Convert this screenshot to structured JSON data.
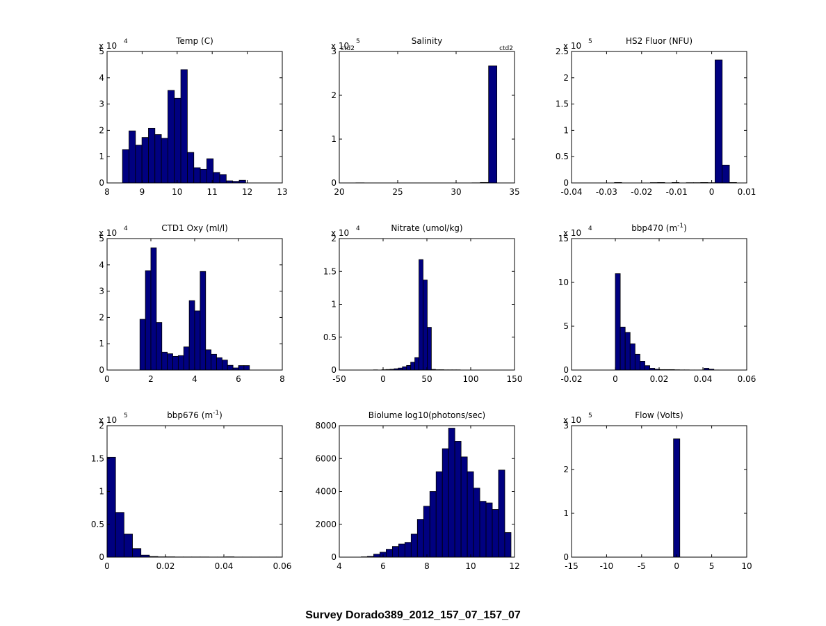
{
  "figure": {
    "suptitle": "Survey Dorado389_2012_157_07_157_07",
    "bar_color": "#000080",
    "edge_color": "#000000"
  },
  "chart_data": [
    {
      "type": "bar",
      "title": "Temp (C)",
      "xlim": [
        8,
        13
      ],
      "ylim": [
        0,
        5
      ],
      "multiplier": "x 10",
      "exponent": "4",
      "xticks": [
        {
          "v": 8,
          "label": "8"
        },
        {
          "v": 9,
          "label": "9"
        },
        {
          "v": 10,
          "label": "10"
        },
        {
          "v": 11,
          "label": "11"
        },
        {
          "v": 12,
          "label": "12"
        },
        {
          "v": 13,
          "label": "13"
        }
      ],
      "yticks": [
        {
          "v": 0,
          "label": "0"
        },
        {
          "v": 1,
          "label": "1"
        },
        {
          "v": 2,
          "label": "2"
        },
        {
          "v": 3,
          "label": "3"
        },
        {
          "v": 4,
          "label": "4"
        },
        {
          "v": 5,
          "label": "5"
        }
      ],
      "bin_start": 8.44,
      "bin_width": 0.185,
      "values": [
        1.27,
        1.98,
        1.44,
        1.73,
        2.08,
        1.84,
        1.7,
        3.52,
        3.22,
        4.31,
        1.16,
        0.58,
        0.52,
        0.92,
        0.4,
        0.32,
        0.08,
        0.06,
        0.1,
        0,
        0,
        0
      ]
    },
    {
      "type": "bar",
      "title": "Salinity",
      "xlim": [
        20,
        35
      ],
      "ylim": [
        0,
        3
      ],
      "multiplier": "x 10",
      "exponent": "5",
      "annotations": [
        "ctd2",
        "ctd2"
      ],
      "xticks": [
        {
          "v": 20,
          "label": "20"
        },
        {
          "v": 25,
          "label": "25"
        },
        {
          "v": 30,
          "label": "30"
        },
        {
          "v": 35,
          "label": "35"
        }
      ],
      "yticks": [
        {
          "v": 0,
          "label": "0"
        },
        {
          "v": 1,
          "label": "1"
        },
        {
          "v": 2,
          "label": "2"
        },
        {
          "v": 3,
          "label": "3"
        }
      ],
      "bin_start": 20.0,
      "bin_width": 0.71,
      "values": [
        0,
        0,
        0.003,
        0,
        0,
        0,
        0,
        0,
        0,
        0,
        0,
        0,
        0,
        0,
        0,
        0,
        0.003,
        0.01,
        2.67,
        0
      ]
    },
    {
      "type": "bar",
      "title": "HS2 Fluor (NFU)",
      "xlim": [
        -0.04,
        0.01
      ],
      "ylim": [
        0,
        2.5
      ],
      "multiplier": "x 10",
      "exponent": "5",
      "xticks": [
        {
          "v": -0.04,
          "label": "-0.04"
        },
        {
          "v": -0.03,
          "label": "-0.03"
        },
        {
          "v": -0.02,
          "label": "-0.02"
        },
        {
          "v": -0.01,
          "label": "-0.01"
        },
        {
          "v": 0,
          "label": "0"
        },
        {
          "v": 0.01,
          "label": "0.01"
        }
      ],
      "yticks": [
        {
          "v": 0,
          "label": "0"
        },
        {
          "v": 0.5,
          "label": "0.5"
        },
        {
          "v": 1,
          "label": "1"
        },
        {
          "v": 1.5,
          "label": "1.5"
        },
        {
          "v": 2,
          "label": "2"
        },
        {
          "v": 2.5,
          "label": "2.5"
        }
      ],
      "bin_start": -0.0339,
      "bin_width": 0.00205,
      "values": [
        0,
        0,
        0,
        0.008,
        0,
        0,
        0,
        0,
        0.006,
        0.008,
        0,
        0.008,
        0,
        0.005,
        0.005,
        0.008,
        0.005,
        2.34,
        0.34,
        0.008
      ]
    },
    {
      "type": "bar",
      "title": "CTD1 Oxy (ml/l)",
      "xlim": [
        0,
        8
      ],
      "ylim": [
        0,
        5
      ],
      "multiplier": "x 10",
      "exponent": "4",
      "xticks": [
        {
          "v": 0,
          "label": "0"
        },
        {
          "v": 2,
          "label": "2"
        },
        {
          "v": 4,
          "label": "4"
        },
        {
          "v": 6,
          "label": "6"
        },
        {
          "v": 8,
          "label": "8"
        }
      ],
      "yticks": [
        {
          "v": 0,
          "label": "0"
        },
        {
          "v": 1,
          "label": "1"
        },
        {
          "v": 2,
          "label": "2"
        },
        {
          "v": 3,
          "label": "3"
        },
        {
          "v": 4,
          "label": "4"
        },
        {
          "v": 5,
          "label": "5"
        }
      ],
      "bin_start": 1.5,
      "bin_width": 0.25,
      "values": [
        1.93,
        3.78,
        4.65,
        1.81,
        0.68,
        0.62,
        0.52,
        0.55,
        0.88,
        2.64,
        2.25,
        3.75,
        0.77,
        0.6,
        0.47,
        0.38,
        0.18,
        0.08,
        0.17,
        0.17
      ]
    },
    {
      "type": "bar",
      "title": "Nitrate (umol/kg)",
      "xlim": [
        -50,
        150
      ],
      "ylim": [
        0,
        2
      ],
      "multiplier": "x 10",
      "exponent": "4",
      "xticks": [
        {
          "v": -50,
          "label": "-50"
        },
        {
          "v": 0,
          "label": "0"
        },
        {
          "v": 50,
          "label": "50"
        },
        {
          "v": 100,
          "label": "100"
        },
        {
          "v": 150,
          "label": "150"
        }
      ],
      "yticks": [
        {
          "v": 0,
          "label": "0"
        },
        {
          "v": 0.5,
          "label": "0.5"
        },
        {
          "v": 1,
          "label": "1"
        },
        {
          "v": 1.5,
          "label": "1.5"
        },
        {
          "v": 2,
          "label": "2"
        }
      ],
      "bin_start": -11.0,
      "bin_width": 4.72,
      "values": [
        0.003,
        0,
        0.005,
        0.008,
        0.012,
        0.02,
        0.03,
        0.05,
        0.07,
        0.12,
        0.19,
        1.68,
        1.37,
        0.65,
        0.01,
        0.005,
        0.005,
        0.003,
        0.003,
        0.003,
        0.003,
        0
      ]
    },
    {
      "type": "bar",
      "title": "bbp470 (m^-1)",
      "title_main": "bbp470 (m",
      "title_sup": "-1",
      "title_end": ")",
      "xlim": [
        -0.02,
        0.06
      ],
      "ylim": [
        0,
        15
      ],
      "multiplier": "x 10",
      "exponent": "4",
      "xticks": [
        {
          "v": -0.02,
          "label": "-0.02"
        },
        {
          "v": 0,
          "label": "0"
        },
        {
          "v": 0.02,
          "label": "0.02"
        },
        {
          "v": 0.04,
          "label": "0.04"
        },
        {
          "v": 0.06,
          "label": "0.06"
        }
      ],
      "yticks": [
        {
          "v": 0,
          "label": "0"
        },
        {
          "v": 5,
          "label": "5"
        },
        {
          "v": 10,
          "label": "10"
        },
        {
          "v": 15,
          "label": "15"
        }
      ],
      "bin_start": 0.0,
      "bin_width": 0.00225,
      "values": [
        11.0,
        4.9,
        4.3,
        3.0,
        1.8,
        1.0,
        0.5,
        0.2,
        0.1,
        0.05,
        0.05,
        0.05,
        0.03,
        0.02,
        0.02,
        0.01,
        0.01,
        0.01,
        0.2,
        0.1,
        0.01
      ]
    },
    {
      "type": "bar",
      "title": "bbp676 (m^-1)",
      "title_main": "bbp676 (m",
      "title_sup": "-1",
      "title_end": ")",
      "xlim": [
        0,
        0.06
      ],
      "ylim": [
        0,
        2
      ],
      "multiplier": "x 10",
      "exponent": "5",
      "xticks": [
        {
          "v": 0,
          "label": "0"
        },
        {
          "v": 0.02,
          "label": "0.02"
        },
        {
          "v": 0.04,
          "label": "0.04"
        },
        {
          "v": 0.06,
          "label": "0.06"
        }
      ],
      "yticks": [
        {
          "v": 0,
          "label": "0"
        },
        {
          "v": 0.5,
          "label": "0.5"
        },
        {
          "v": 1,
          "label": "1"
        },
        {
          "v": 1.5,
          "label": "1.5"
        },
        {
          "v": 2,
          "label": "2"
        }
      ],
      "bin_start": 0.0,
      "bin_width": 0.0029,
      "values": [
        1.52,
        0.68,
        0.35,
        0.13,
        0.03,
        0.01,
        0.005,
        0.005,
        0.003,
        0.003,
        0.003,
        0.003,
        0.002,
        0.002,
        0.005,
        0.002,
        0.002,
        0.002,
        0.002,
        0.002,
        0.002
      ]
    },
    {
      "type": "bar",
      "title": "Biolume log10(photons/sec)",
      "xlim": [
        4,
        12
      ],
      "ylim": [
        0,
        8000
      ],
      "multiplier": "",
      "exponent": "",
      "xticks": [
        {
          "v": 4,
          "label": "4"
        },
        {
          "v": 6,
          "label": "6"
        },
        {
          "v": 8,
          "label": "8"
        },
        {
          "v": 10,
          "label": "10"
        },
        {
          "v": 12,
          "label": "12"
        }
      ],
      "yticks": [
        {
          "v": 0,
          "label": "0"
        },
        {
          "v": 2000,
          "label": "2000"
        },
        {
          "v": 4000,
          "label": "4000"
        },
        {
          "v": 6000,
          "label": "6000"
        },
        {
          "v": 8000,
          "label": "8000"
        }
      ],
      "bin_start": 5.0,
      "bin_width": 0.285,
      "values": [
        20,
        50,
        180,
        300,
        480,
        650,
        800,
        900,
        1400,
        2300,
        3100,
        4000,
        5200,
        6600,
        7850,
        7050,
        6100,
        5200,
        4200,
        3400,
        3300,
        2900,
        5300,
        1500
      ]
    },
    {
      "type": "bar",
      "title": "Flow (Volts)",
      "xlim": [
        -15,
        10
      ],
      "ylim": [
        0,
        3
      ],
      "multiplier": "x 10",
      "exponent": "5",
      "xticks": [
        {
          "v": -15,
          "label": "-15"
        },
        {
          "v": -10,
          "label": "-10"
        },
        {
          "v": -5,
          "label": "-5"
        },
        {
          "v": 0,
          "label": "0"
        },
        {
          "v": 5,
          "label": "5"
        },
        {
          "v": 10,
          "label": "10"
        }
      ],
      "yticks": [
        {
          "v": 0,
          "label": "0"
        },
        {
          "v": 1,
          "label": "1"
        },
        {
          "v": 2,
          "label": "2"
        },
        {
          "v": 3,
          "label": "3"
        }
      ],
      "bin_start": -0.45,
      "bin_width": 0.9,
      "values": [
        2.7
      ]
    }
  ]
}
